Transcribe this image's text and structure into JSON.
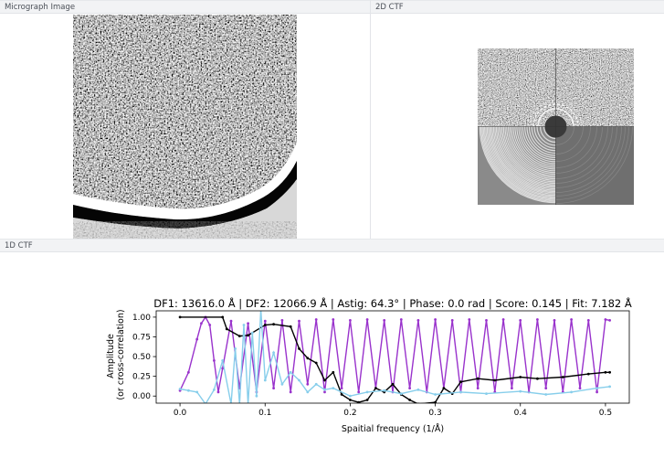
{
  "panels": {
    "micrograph": {
      "title": "Micrograph Image"
    },
    "ctf2d": {
      "title": "2D CTF"
    },
    "ctf1d": {
      "title": "1D CTF"
    }
  },
  "chart_data": {
    "type": "line",
    "title": "DF1: 13616.0 Å | DF2: 12066.9 Å | Astig: 64.3° | Phase: 0.0 rad | Score: 0.145 | Fit: 7.182 Å",
    "xlabel": "Spaitial frequency (1/Å)",
    "ylabel": "Amplitude\n(or cross-correlation)",
    "xlim": [
      -0.028,
      0.528
    ],
    "ylim": [
      -0.09,
      1.08
    ],
    "xticks": [
      0.0,
      0.1,
      0.2,
      0.3,
      0.4,
      0.5
    ],
    "yticks": [
      0.0,
      0.25,
      0.5,
      0.75,
      1.0
    ],
    "ytick_labels": [
      "0.00",
      "0.25",
      "0.50",
      "0.75",
      "1.00"
    ],
    "grid": false,
    "series": [
      {
        "style": "oscillating CTF fit",
        "color": "#9932cc",
        "x": [
          0.0,
          0.01,
          0.02,
          0.025,
          0.03,
          0.035,
          0.04,
          0.045,
          0.05,
          0.06,
          0.07,
          0.08,
          0.09,
          0.1,
          0.11,
          0.12,
          0.13,
          0.14,
          0.15,
          0.16,
          0.17,
          0.18,
          0.19,
          0.2,
          0.21,
          0.22,
          0.23,
          0.24,
          0.25,
          0.26,
          0.27,
          0.28,
          0.29,
          0.3,
          0.31,
          0.32,
          0.33,
          0.34,
          0.35,
          0.36,
          0.37,
          0.38,
          0.39,
          0.4,
          0.41,
          0.42,
          0.43,
          0.44,
          0.45,
          0.46,
          0.47,
          0.48,
          0.49,
          0.5,
          0.505
        ],
        "y": [
          0.07,
          0.3,
          0.72,
          0.92,
          1.0,
          0.9,
          0.45,
          0.05,
          0.35,
          0.95,
          0.1,
          0.92,
          0.05,
          0.95,
          0.1,
          0.96,
          0.05,
          0.95,
          0.15,
          0.97,
          0.05,
          0.97,
          0.1,
          0.96,
          0.05,
          0.97,
          0.1,
          0.96,
          0.05,
          0.97,
          0.1,
          0.96,
          0.05,
          0.97,
          0.1,
          0.96,
          0.05,
          0.97,
          0.1,
          0.96,
          0.05,
          0.97,
          0.1,
          0.96,
          0.05,
          0.97,
          0.1,
          0.96,
          0.05,
          0.97,
          0.1,
          0.96,
          0.05,
          0.97,
          0.96
        ]
      },
      {
        "style": "cross-correlation",
        "color": "#000000",
        "x": [
          0.0,
          0.05,
          0.055,
          0.07,
          0.08,
          0.1,
          0.11,
          0.13,
          0.14,
          0.15,
          0.16,
          0.17,
          0.18,
          0.19,
          0.2,
          0.21,
          0.22,
          0.23,
          0.24,
          0.25,
          0.26,
          0.27,
          0.28,
          0.3,
          0.31,
          0.32,
          0.33,
          0.35,
          0.37,
          0.4,
          0.42,
          0.45,
          0.48,
          0.5,
          0.505
        ],
        "y": [
          1.0,
          1.0,
          0.85,
          0.76,
          0.77,
          0.9,
          0.91,
          0.88,
          0.6,
          0.48,
          0.42,
          0.2,
          0.3,
          0.02,
          -0.05,
          -0.08,
          -0.05,
          0.1,
          0.05,
          0.15,
          0.02,
          -0.05,
          -0.1,
          -0.08,
          0.1,
          0.03,
          0.18,
          0.22,
          0.2,
          0.24,
          0.22,
          0.24,
          0.28,
          0.3,
          0.3
        ]
      },
      {
        "style": "measured spectrum",
        "color": "#87ceeb",
        "x": [
          0.0,
          0.01,
          0.02,
          0.03,
          0.04,
          0.05,
          0.06,
          0.065,
          0.07,
          0.075,
          0.08,
          0.085,
          0.09,
          0.095,
          0.1,
          0.11,
          0.12,
          0.13,
          0.14,
          0.15,
          0.16,
          0.17,
          0.18,
          0.2,
          0.22,
          0.24,
          0.26,
          0.28,
          0.3,
          0.33,
          0.36,
          0.4,
          0.43,
          0.46,
          0.49,
          0.505
        ],
        "y": [
          0.09,
          0.07,
          0.05,
          -0.1,
          0.08,
          0.45,
          -0.1,
          0.6,
          -0.1,
          0.9,
          -0.1,
          0.8,
          0.0,
          1.1,
          0.2,
          0.55,
          0.15,
          0.3,
          0.2,
          0.05,
          0.15,
          0.08,
          0.1,
          0.0,
          0.05,
          0.07,
          0.03,
          0.08,
          0.02,
          0.05,
          0.03,
          0.06,
          0.02,
          0.05,
          0.1,
          0.12
        ]
      }
    ]
  }
}
